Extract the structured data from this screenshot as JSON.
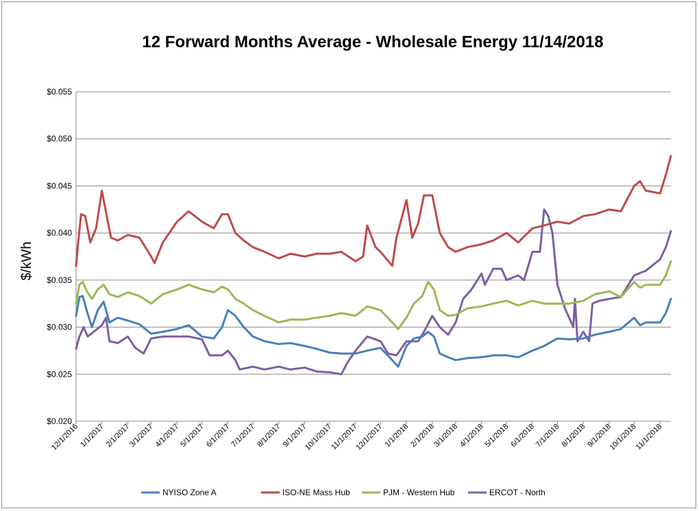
{
  "chart_data": {
    "type": "line",
    "title": "12 Forward Months Average - Wholesale Energy 11/14/2018",
    "ylabel": "$/kWh",
    "xlabel": "",
    "ylim": [
      0.02,
      0.055
    ],
    "y_ticks": [
      0.02,
      0.025,
      0.03,
      0.035,
      0.04,
      0.045,
      0.05,
      0.055
    ],
    "y_tick_labels": [
      "$0.020",
      "$0.025",
      "$0.030",
      "$0.035",
      "$0.040",
      "$0.045",
      "$0.050",
      "$0.055"
    ],
    "x_tick_labels": [
      "12/1/2016",
      "1/1/2017",
      "2/1/2017",
      "3/1/2017",
      "4/1/2017",
      "5/1/2017",
      "6/1/2017",
      "7/1/2017",
      "8/1/2017",
      "9/1/2017",
      "10/1/2017",
      "11/1/2017",
      "12/1/2017",
      "1/1/2018",
      "2/1/2018",
      "3/1/2018",
      "4/1/2018",
      "5/1/2018",
      "6/1/2018",
      "7/1/2018",
      "8/1/2018",
      "9/1/2018",
      "10/1/2018",
      "11/1/2018"
    ],
    "grid": "horizontal",
    "legend_position": "bottom",
    "series": [
      {
        "name": "NYISO Zone A",
        "color": "#4a7ebb",
        "points": [
          [
            "12/1/2016",
            0.0312
          ],
          [
            "12/5/2016",
            0.0332
          ],
          [
            "12/9/2016",
            0.0333
          ],
          [
            "12/13/2016",
            0.032
          ],
          [
            "12/20/2016",
            0.03
          ],
          [
            "12/27/2016",
            0.0318
          ],
          [
            "1/3/2017",
            0.0327
          ],
          [
            "1/10/2017",
            0.0305
          ],
          [
            "1/20/2017",
            0.031
          ],
          [
            "2/1/2017",
            0.0307
          ],
          [
            "2/15/2017",
            0.0303
          ],
          [
            "3/1/2017",
            0.0293
          ],
          [
            "3/15/2017",
            0.0295
          ],
          [
            "4/1/2017",
            0.0298
          ],
          [
            "4/15/2017",
            0.0302
          ],
          [
            "5/1/2017",
            0.029
          ],
          [
            "5/15/2017",
            0.0288
          ],
          [
            "5/25/2017",
            0.03
          ],
          [
            "6/1/2017",
            0.0318
          ],
          [
            "6/10/2017",
            0.0312
          ],
          [
            "6/20/2017",
            0.03
          ],
          [
            "7/1/2017",
            0.029
          ],
          [
            "7/15/2017",
            0.0285
          ],
          [
            "8/1/2017",
            0.0282
          ],
          [
            "8/15/2017",
            0.0283
          ],
          [
            "9/1/2017",
            0.028
          ],
          [
            "9/15/2017",
            0.0277
          ],
          [
            "10/1/2017",
            0.0273
          ],
          [
            "10/15/2017",
            0.0272
          ],
          [
            "11/1/2017",
            0.0272
          ],
          [
            "11/15/2017",
            0.0275
          ],
          [
            "12/1/2017",
            0.0278
          ],
          [
            "12/15/2017",
            0.0265
          ],
          [
            "12/22/2017",
            0.0258
          ],
          [
            "1/1/2018",
            0.028
          ],
          [
            "1/10/2018",
            0.0288
          ],
          [
            "1/20/2018",
            0.029
          ],
          [
            "1/27/2018",
            0.0295
          ],
          [
            "2/3/2018",
            0.029
          ],
          [
            "2/10/2018",
            0.0272
          ],
          [
            "2/20/2018",
            0.0268
          ],
          [
            "3/1/2018",
            0.0265
          ],
          [
            "3/15/2018",
            0.0267
          ],
          [
            "4/1/2018",
            0.0268
          ],
          [
            "4/15/2018",
            0.027
          ],
          [
            "5/1/2018",
            0.027
          ],
          [
            "5/15/2018",
            0.0268
          ],
          [
            "6/1/2018",
            0.0275
          ],
          [
            "6/15/2018",
            0.028
          ],
          [
            "7/1/2018",
            0.0288
          ],
          [
            "7/15/2018",
            0.0287
          ],
          [
            "8/1/2018",
            0.0288
          ],
          [
            "8/15/2018",
            0.0292
          ],
          [
            "9/1/2018",
            0.0295
          ],
          [
            "9/15/2018",
            0.0298
          ],
          [
            "10/1/2018",
            0.031
          ],
          [
            "10/8/2018",
            0.0302
          ],
          [
            "10/15/2018",
            0.0305
          ],
          [
            "11/1/2018",
            0.0305
          ],
          [
            "11/8/2018",
            0.0315
          ],
          [
            "11/14/2018",
            0.033
          ]
        ]
      },
      {
        "name": "ISO-NE Mass Hub",
        "color": "#be4b48",
        "points": [
          [
            "12/1/2016",
            0.0365
          ],
          [
            "12/3/2016",
            0.0385
          ],
          [
            "12/7/2016",
            0.042
          ],
          [
            "12/12/2016",
            0.0418
          ],
          [
            "12/18/2016",
            0.039
          ],
          [
            "12/25/2016",
            0.0405
          ],
          [
            "1/1/2017",
            0.0445
          ],
          [
            "1/8/2017",
            0.0412
          ],
          [
            "1/12/2017",
            0.0395
          ],
          [
            "1/20/2017",
            0.0392
          ],
          [
            "2/1/2017",
            0.0398
          ],
          [
            "2/15/2017",
            0.0395
          ],
          [
            "3/1/2017",
            0.0375
          ],
          [
            "3/5/2017",
            0.0368
          ],
          [
            "3/15/2017",
            0.039
          ],
          [
            "4/1/2017",
            0.0412
          ],
          [
            "4/15/2017",
            0.0423
          ],
          [
            "5/1/2017",
            0.0412
          ],
          [
            "5/15/2017",
            0.0405
          ],
          [
            "5/25/2017",
            0.042
          ],
          [
            "6/1/2017",
            0.042
          ],
          [
            "6/10/2017",
            0.04
          ],
          [
            "6/20/2017",
            0.0392
          ],
          [
            "7/1/2017",
            0.0385
          ],
          [
            "7/15/2017",
            0.038
          ],
          [
            "8/1/2017",
            0.0373
          ],
          [
            "8/15/2017",
            0.0378
          ],
          [
            "9/1/2017",
            0.0375
          ],
          [
            "9/15/2017",
            0.0378
          ],
          [
            "10/1/2017",
            0.0378
          ],
          [
            "10/15/2017",
            0.038
          ],
          [
            "11/1/2017",
            0.037
          ],
          [
            "11/10/2017",
            0.0375
          ],
          [
            "11/15/2017",
            0.0408
          ],
          [
            "11/25/2017",
            0.0385
          ],
          [
            "12/1/2017",
            0.038
          ],
          [
            "12/15/2017",
            0.0365
          ],
          [
            "12/20/2017",
            0.0395
          ],
          [
            "1/1/2018",
            0.0435
          ],
          [
            "1/8/2018",
            0.0395
          ],
          [
            "1/15/2018",
            0.041
          ],
          [
            "1/22/2018",
            0.044
          ],
          [
            "2/1/2018",
            0.044
          ],
          [
            "2/10/2018",
            0.04
          ],
          [
            "2/20/2018",
            0.0385
          ],
          [
            "3/1/2018",
            0.038
          ],
          [
            "3/15/2018",
            0.0385
          ],
          [
            "4/1/2018",
            0.0388
          ],
          [
            "4/15/2018",
            0.0392
          ],
          [
            "5/1/2018",
            0.04
          ],
          [
            "5/15/2018",
            0.039
          ],
          [
            "6/1/2018",
            0.0405
          ],
          [
            "6/15/2018",
            0.0408
          ],
          [
            "7/1/2018",
            0.0412
          ],
          [
            "7/15/2018",
            0.041
          ],
          [
            "8/1/2018",
            0.0418
          ],
          [
            "8/15/2018",
            0.042
          ],
          [
            "9/1/2018",
            0.0425
          ],
          [
            "9/15/2018",
            0.0423
          ],
          [
            "10/1/2018",
            0.045
          ],
          [
            "10/8/2018",
            0.0455
          ],
          [
            "10/15/2018",
            0.0445
          ],
          [
            "11/1/2018",
            0.0442
          ],
          [
            "11/8/2018",
            0.0462
          ],
          [
            "11/14/2018",
            0.0482
          ]
        ]
      },
      {
        "name": "PJM - Western Hub",
        "color": "#98b954",
        "points": [
          [
            "12/1/2016",
            0.0325
          ],
          [
            "12/5/2016",
            0.0345
          ],
          [
            "12/9/2016",
            0.0348
          ],
          [
            "12/14/2016",
            0.0338
          ],
          [
            "12/20/2016",
            0.033
          ],
          [
            "12/27/2016",
            0.034
          ],
          [
            "1/3/2017",
            0.0345
          ],
          [
            "1/10/2017",
            0.0335
          ],
          [
            "1/20/2017",
            0.0332
          ],
          [
            "2/1/2017",
            0.0337
          ],
          [
            "2/15/2017",
            0.0333
          ],
          [
            "3/1/2017",
            0.0325
          ],
          [
            "3/15/2017",
            0.0335
          ],
          [
            "4/1/2017",
            0.034
          ],
          [
            "4/15/2017",
            0.0345
          ],
          [
            "5/1/2017",
            0.034
          ],
          [
            "5/15/2017",
            0.0337
          ],
          [
            "5/25/2017",
            0.0343
          ],
          [
            "6/1/2017",
            0.034
          ],
          [
            "6/10/2017",
            0.033
          ],
          [
            "6/20/2017",
            0.0325
          ],
          [
            "7/1/2017",
            0.0318
          ],
          [
            "7/15/2017",
            0.0312
          ],
          [
            "8/1/2017",
            0.0305
          ],
          [
            "8/15/2017",
            0.0308
          ],
          [
            "9/1/2017",
            0.0308
          ],
          [
            "9/15/2017",
            0.031
          ],
          [
            "10/1/2017",
            0.0312
          ],
          [
            "10/15/2017",
            0.0315
          ],
          [
            "11/1/2017",
            0.0312
          ],
          [
            "11/15/2017",
            0.0322
          ],
          [
            "12/1/2017",
            0.0318
          ],
          [
            "12/15/2017",
            0.0305
          ],
          [
            "12/22/2017",
            0.0298
          ],
          [
            "1/1/2018",
            0.031
          ],
          [
            "1/10/2018",
            0.0325
          ],
          [
            "1/20/2018",
            0.0333
          ],
          [
            "1/27/2018",
            0.0348
          ],
          [
            "2/3/2018",
            0.034
          ],
          [
            "2/10/2018",
            0.0318
          ],
          [
            "2/20/2018",
            0.0312
          ],
          [
            "3/1/2018",
            0.0313
          ],
          [
            "3/15/2018",
            0.032
          ],
          [
            "4/1/2018",
            0.0322
          ],
          [
            "4/15/2018",
            0.0325
          ],
          [
            "5/1/2018",
            0.0328
          ],
          [
            "5/15/2018",
            0.0323
          ],
          [
            "6/1/2018",
            0.0328
          ],
          [
            "6/15/2018",
            0.0325
          ],
          [
            "7/1/2018",
            0.0325
          ],
          [
            "7/15/2018",
            0.0325
          ],
          [
            "8/1/2018",
            0.0328
          ],
          [
            "8/15/2018",
            0.0335
          ],
          [
            "9/1/2018",
            0.0338
          ],
          [
            "9/15/2018",
            0.0332
          ],
          [
            "10/1/2018",
            0.0348
          ],
          [
            "10/8/2018",
            0.0342
          ],
          [
            "10/15/2018",
            0.0345
          ],
          [
            "11/1/2018",
            0.0345
          ],
          [
            "11/8/2018",
            0.0355
          ],
          [
            "11/14/2018",
            0.037
          ]
        ]
      },
      {
        "name": "ERCOT - North",
        "color": "#7d5fa0",
        "points": [
          [
            "12/1/2016",
            0.0277
          ],
          [
            "12/5/2016",
            0.029
          ],
          [
            "12/10/2016",
            0.03
          ],
          [
            "12/15/2016",
            0.029
          ],
          [
            "12/22/2016",
            0.0295
          ],
          [
            "1/1/2017",
            0.0302
          ],
          [
            "1/6/2017",
            0.031
          ],
          [
            "1/10/2017",
            0.0285
          ],
          [
            "1/20/2017",
            0.0283
          ],
          [
            "2/1/2017",
            0.029
          ],
          [
            "2/10/2017",
            0.0278
          ],
          [
            "2/20/2017",
            0.0272
          ],
          [
            "3/1/2017",
            0.0288
          ],
          [
            "3/15/2017",
            0.029
          ],
          [
            "4/1/2017",
            0.029
          ],
          [
            "4/15/2017",
            0.029
          ],
          [
            "5/1/2017",
            0.0287
          ],
          [
            "5/10/2017",
            0.027
          ],
          [
            "5/25/2017",
            0.027
          ],
          [
            "6/1/2017",
            0.0275
          ],
          [
            "6/10/2017",
            0.0265
          ],
          [
            "6/15/2017",
            0.0255
          ],
          [
            "7/1/2017",
            0.0258
          ],
          [
            "7/15/2017",
            0.0255
          ],
          [
            "8/1/2017",
            0.0258
          ],
          [
            "8/15/2017",
            0.0255
          ],
          [
            "9/1/2017",
            0.0257
          ],
          [
            "9/15/2017",
            0.0253
          ],
          [
            "10/1/2017",
            0.0252
          ],
          [
            "10/15/2017",
            0.025
          ],
          [
            "10/22/2017",
            0.0262
          ],
          [
            "11/1/2017",
            0.0275
          ],
          [
            "11/15/2017",
            0.029
          ],
          [
            "12/1/2017",
            0.0285
          ],
          [
            "12/10/2017",
            0.0272
          ],
          [
            "12/20/2017",
            0.027
          ],
          [
            "1/1/2018",
            0.0285
          ],
          [
            "1/15/2018",
            0.0285
          ],
          [
            "1/22/2018",
            0.0295
          ],
          [
            "2/1/2018",
            0.0312
          ],
          [
            "2/10/2018",
            0.03
          ],
          [
            "2/20/2018",
            0.0292
          ],
          [
            "3/1/2018",
            0.0305
          ],
          [
            "3/10/2018",
            0.033
          ],
          [
            "3/20/2018",
            0.034
          ],
          [
            "4/1/2018",
            0.0357
          ],
          [
            "4/5/2018",
            0.0345
          ],
          [
            "4/15/2018",
            0.0362
          ],
          [
            "4/25/2018",
            0.0362
          ],
          [
            "5/1/2018",
            0.035
          ],
          [
            "5/15/2018",
            0.0355
          ],
          [
            "5/22/2018",
            0.035
          ],
          [
            "6/1/2018",
            0.038
          ],
          [
            "6/10/2018",
            0.038
          ],
          [
            "6/15/2018",
            0.0425
          ],
          [
            "6/20/2018",
            0.0418
          ],
          [
            "6/25/2018",
            0.04
          ],
          [
            "7/1/2018",
            0.0345
          ],
          [
            "7/10/2018",
            0.032
          ],
          [
            "7/20/2018",
            0.03
          ],
          [
            "7/22/2018",
            0.033
          ],
          [
            "7/25/2018",
            0.0285
          ],
          [
            "8/1/2018",
            0.0295
          ],
          [
            "8/8/2018",
            0.0285
          ],
          [
            "8/12/2018",
            0.0325
          ],
          [
            "8/20/2018",
            0.0328
          ],
          [
            "9/1/2018",
            0.033
          ],
          [
            "9/15/2018",
            0.0332
          ],
          [
            "10/1/2018",
            0.0355
          ],
          [
            "10/15/2018",
            0.036
          ],
          [
            "11/1/2018",
            0.0372
          ],
          [
            "11/8/2018",
            0.0385
          ],
          [
            "11/14/2018",
            0.0402
          ]
        ]
      }
    ]
  }
}
